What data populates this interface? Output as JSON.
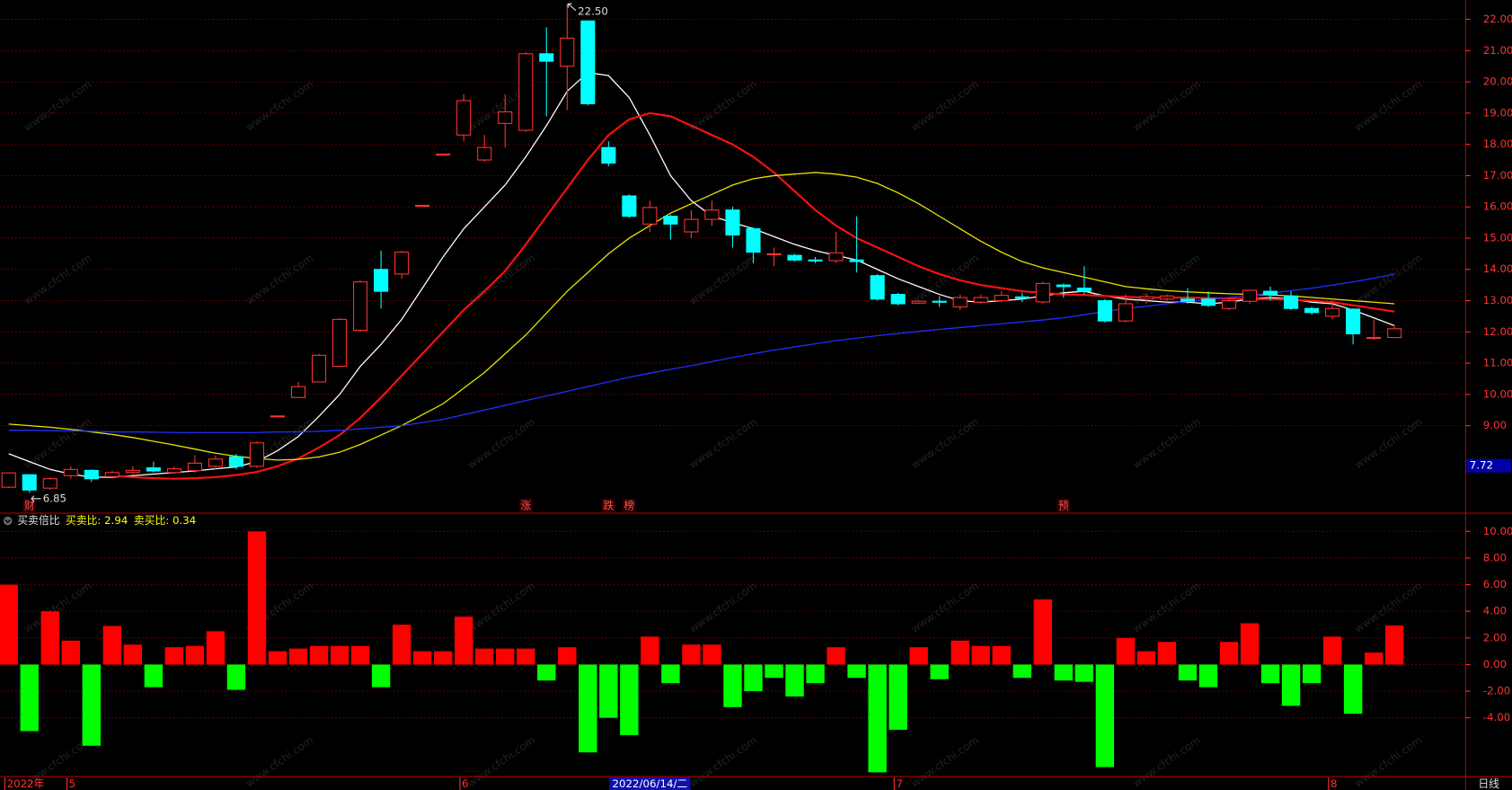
{
  "watermark": "www.cfchi.com",
  "chart_data": [
    {
      "type": "candlestick",
      "up_color": "#ff3232",
      "down_color": "#00ffff",
      "ylim": [
        6.2,
        22.62
      ],
      "yticks": [
        {
          "value": 9,
          "label": "9.00"
        },
        {
          "value": 10,
          "label": "10.00"
        },
        {
          "value": 11,
          "label": "11.00"
        },
        {
          "value": 12,
          "label": "12.00"
        },
        {
          "value": 13,
          "label": "13.00"
        },
        {
          "value": 14,
          "label": "14.00"
        },
        {
          "value": 15,
          "label": "15.00"
        },
        {
          "value": 16,
          "label": "16.00"
        },
        {
          "value": 17,
          "label": "17.00"
        },
        {
          "value": 18,
          "label": "18.00"
        },
        {
          "value": 19,
          "label": "19.00"
        },
        {
          "value": 20,
          "label": "20.00"
        },
        {
          "value": 21,
          "label": "21.00"
        },
        {
          "value": 22,
          "label": "22.00"
        }
      ],
      "grid": true,
      "open": [
        7.03,
        7.43,
        7.0,
        7.4,
        7.57,
        7.37,
        7.5,
        7.65,
        7.5,
        7.56,
        7.7,
        8.0,
        7.7,
        9.3,
        9.9,
        10.4,
        10.9,
        12.05,
        14.0,
        13.85,
        16.04,
        17.68,
        18.3,
        17.5,
        18.67,
        18.45,
        20.9,
        20.5,
        21.95,
        17.9,
        16.35,
        15.45,
        15.7,
        15.2,
        15.6,
        15.9,
        15.3,
        14.5,
        14.45,
        14.3,
        14.28,
        14.3,
        13.8,
        13.2,
        12.92,
        12.98,
        12.8,
        12.95,
        13.0,
        13.12,
        12.96,
        13.5,
        13.4,
        13.0,
        12.35,
        13.05,
        13.05,
        13.05,
        13.05,
        12.75,
        12.98,
        13.3,
        13.15,
        12.75,
        12.5,
        12.73,
        11.8,
        11.82
      ],
      "high": [
        7.5,
        7.45,
        7.35,
        7.7,
        7.6,
        7.55,
        7.7,
        7.85,
        7.7,
        8.05,
        8.05,
        8.1,
        8.5,
        9.32,
        10.4,
        11.3,
        12.45,
        13.65,
        14.6,
        14.6,
        16.06,
        17.7,
        19.6,
        18.3,
        19.6,
        20.95,
        21.75,
        22.5,
        21.95,
        18.1,
        16.4,
        16.2,
        15.75,
        15.9,
        16.2,
        16.0,
        15.35,
        14.7,
        14.5,
        14.4,
        15.2,
        15.7,
        13.85,
        13.25,
        13.0,
        13.15,
        13.2,
        13.2,
        13.3,
        13.25,
        13.6,
        13.55,
        14.1,
        13.05,
        13.2,
        13.2,
        13.2,
        13.4,
        13.3,
        13.1,
        13.35,
        13.45,
        13.3,
        12.8,
        13.0,
        12.75,
        12.4,
        12.2
      ],
      "low": [
        7.0,
        6.85,
        6.95,
        7.3,
        7.2,
        7.3,
        7.45,
        7.5,
        7.45,
        7.5,
        7.6,
        7.6,
        7.65,
        9.29,
        9.9,
        10.4,
        10.9,
        12.0,
        12.75,
        13.7,
        16.02,
        17.66,
        18.1,
        17.45,
        17.9,
        18.4,
        18.9,
        19.1,
        19.25,
        17.3,
        15.65,
        15.2,
        14.95,
        15.0,
        15.4,
        14.7,
        14.2,
        14.1,
        14.25,
        14.2,
        14.2,
        13.9,
        13.0,
        12.85,
        12.9,
        12.8,
        12.7,
        12.9,
        12.95,
        12.95,
        12.9,
        13.1,
        13.2,
        12.3,
        12.3,
        12.9,
        12.95,
        12.9,
        12.8,
        12.7,
        12.9,
        13.0,
        12.7,
        12.55,
        12.4,
        11.6,
        11.75,
        11.8
      ],
      "close": [
        7.49,
        6.94,
        7.3,
        7.6,
        7.3,
        7.5,
        7.57,
        7.55,
        7.62,
        7.8,
        7.93,
        7.7,
        8.45,
        9.31,
        10.25,
        11.25,
        12.4,
        13.6,
        13.3,
        14.55,
        16.05,
        17.69,
        19.4,
        17.9,
        19.04,
        20.9,
        20.66,
        21.4,
        19.3,
        17.4,
        15.7,
        15.98,
        15.45,
        15.6,
        15.9,
        15.1,
        14.55,
        14.5,
        14.3,
        14.27,
        14.53,
        14.25,
        13.05,
        12.9,
        12.98,
        12.95,
        13.1,
        13.1,
        13.17,
        13.08,
        13.55,
        13.45,
        13.3,
        12.35,
        12.9,
        13.12,
        13.15,
        12.98,
        12.85,
        13.0,
        13.33,
        13.2,
        12.75,
        12.62,
        12.75,
        11.94,
        11.82,
        12.1
      ],
      "series": [
        {
          "color": "#ffffff",
          "values": [
            8.1,
            7.85,
            7.6,
            7.45,
            7.35,
            7.35,
            7.4,
            7.45,
            7.5,
            7.55,
            7.62,
            7.68,
            7.85,
            8.2,
            8.65,
            9.3,
            10.0,
            10.9,
            11.6,
            12.4,
            13.4,
            14.4,
            15.3,
            16.0,
            16.7,
            17.6,
            18.6,
            19.7,
            20.3,
            20.2,
            19.5,
            18.3,
            17.0,
            16.2,
            15.7,
            15.5,
            15.3,
            15.05,
            14.8,
            14.6,
            14.45,
            14.3,
            14.0,
            13.7,
            13.45,
            13.2,
            13.0,
            12.95,
            13.0,
            13.05,
            13.15,
            13.25,
            13.3,
            13.15,
            13.05,
            13.0,
            12.95,
            12.95,
            12.9,
            12.95,
            13.05,
            13.1,
            13.05,
            12.95,
            12.9,
            12.7,
            12.45,
            12.2
          ]
        },
        {
          "color": "#ff1010",
          "values": [
            null,
            null,
            null,
            null,
            null,
            7.4,
            7.35,
            7.32,
            7.3,
            7.32,
            7.35,
            7.42,
            7.52,
            7.7,
            7.95,
            8.3,
            8.7,
            9.25,
            9.9,
            10.6,
            11.3,
            12.0,
            12.7,
            13.3,
            13.95,
            14.8,
            15.7,
            16.6,
            17.5,
            18.3,
            18.8,
            19.0,
            18.9,
            18.6,
            18.3,
            18.0,
            17.6,
            17.1,
            16.5,
            15.9,
            15.4,
            15.0,
            14.7,
            14.4,
            14.1,
            13.85,
            13.65,
            13.5,
            13.4,
            13.3,
            13.25,
            13.2,
            13.18,
            13.15,
            13.12,
            13.1,
            13.1,
            13.1,
            13.08,
            13.07,
            13.05,
            13.05,
            13.03,
            13.0,
            12.95,
            12.85,
            12.75,
            12.65
          ]
        },
        {
          "color": "#e6e600",
          "values": [
            9.05,
            9.0,
            8.95,
            8.88,
            8.8,
            8.72,
            8.62,
            8.5,
            8.38,
            8.25,
            8.12,
            8.02,
            7.95,
            7.9,
            7.92,
            8.0,
            8.15,
            8.4,
            8.7,
            9.0,
            9.35,
            9.7,
            10.2,
            10.7,
            11.3,
            11.9,
            12.6,
            13.3,
            13.9,
            14.5,
            15.0,
            15.4,
            15.8,
            16.1,
            16.4,
            16.7,
            16.9,
            17.0,
            17.05,
            17.1,
            17.05,
            16.95,
            16.75,
            16.45,
            16.1,
            15.7,
            15.3,
            14.9,
            14.55,
            14.25,
            14.05,
            13.9,
            13.75,
            13.6,
            13.45,
            13.38,
            13.32,
            13.28,
            13.25,
            13.22,
            13.2,
            13.18,
            13.15,
            13.1,
            13.05,
            13.0,
            12.95,
            12.9
          ]
        },
        {
          "color": "#2030ff",
          "values": [
            8.85,
            8.85,
            8.84,
            8.83,
            8.82,
            8.8,
            8.8,
            8.79,
            8.78,
            8.78,
            8.78,
            8.78,
            8.78,
            8.8,
            8.8,
            8.82,
            8.85,
            8.9,
            8.95,
            9.0,
            9.1,
            9.2,
            9.35,
            9.5,
            9.65,
            9.8,
            9.95,
            10.1,
            10.25,
            10.4,
            10.55,
            10.68,
            10.8,
            10.92,
            11.05,
            11.18,
            11.3,
            11.42,
            11.52,
            11.62,
            11.72,
            11.8,
            11.88,
            11.95,
            12.02,
            12.08,
            12.14,
            12.2,
            12.26,
            12.32,
            12.38,
            12.45,
            12.55,
            12.65,
            12.75,
            12.82,
            12.9,
            12.97,
            13.04,
            13.1,
            13.17,
            13.24,
            13.32,
            13.4,
            13.5,
            13.6,
            13.72,
            13.85
          ]
        }
      ],
      "high_label": {
        "value": 22.5,
        "label": "22.50"
      },
      "low_label": {
        "value": 6.85,
        "label": "6.85"
      },
      "price_marker": {
        "value": 7.72,
        "label": "7.72"
      },
      "event_color": "#ff5050",
      "event_labels": [
        null,
        "财",
        null,
        null,
        null,
        null,
        null,
        null,
        null,
        null,
        null,
        null,
        null,
        null,
        null,
        null,
        null,
        null,
        null,
        null,
        null,
        null,
        null,
        null,
        null,
        "涨",
        null,
        null,
        null,
        "跌",
        "榜",
        null,
        null,
        null,
        null,
        null,
        null,
        null,
        null,
        null,
        null,
        null,
        null,
        null,
        null,
        null,
        null,
        null,
        null,
        null,
        null,
        "预",
        null,
        null,
        null,
        null,
        null,
        null,
        null,
        null,
        null,
        null,
        null,
        null,
        null,
        null,
        null,
        null
      ]
    },
    {
      "type": "bar",
      "title": "买卖倍比",
      "stats": [
        "买卖比: 2.94",
        "卖买比: 0.34"
      ],
      "up_color": "#ff0000",
      "down_color": "#00ff00",
      "ylim": [
        -8.41,
        11.3
      ],
      "yticks": [
        {
          "value": -4,
          "label": "-4.00"
        },
        {
          "value": -2,
          "label": "-2.00"
        },
        {
          "value": 0,
          "label": "0.00"
        },
        {
          "value": 2,
          "label": "2.00"
        },
        {
          "value": 4,
          "label": "4.00"
        },
        {
          "value": 6,
          "label": "6.00"
        },
        {
          "value": 8,
          "label": "8.00"
        },
        {
          "value": 10,
          "label": "10.00"
        }
      ],
      "grid": true,
      "values": [
        6.0,
        -5.0,
        4.0,
        1.8,
        -6.1,
        2.9,
        1.5,
        -1.7,
        1.3,
        1.4,
        2.5,
        -1.9,
        10.0,
        1.0,
        1.2,
        1.4,
        1.4,
        1.4,
        -1.7,
        3.0,
        1.0,
        1.0,
        3.6,
        1.2,
        1.2,
        1.2,
        -1.2,
        1.3,
        -6.6,
        -4.0,
        -5.3,
        2.1,
        -1.4,
        1.5,
        1.5,
        -3.2,
        -2.0,
        -1.0,
        -2.4,
        -1.4,
        1.3,
        -1.0,
        -8.1,
        -4.9,
        1.3,
        -1.1,
        1.8,
        1.4,
        1.4,
        -1.0,
        4.9,
        -1.2,
        -1.3,
        -7.7,
        2.0,
        1.0,
        1.7,
        -1.2,
        -1.7,
        1.7,
        3.1,
        -1.4,
        -3.1,
        -1.4,
        2.1,
        -3.7,
        0.9,
        2.94
      ],
      "categories": [
        "2022年",
        null,
        null,
        "5",
        null,
        null,
        null,
        null,
        null,
        null,
        null,
        null,
        null,
        null,
        null,
        null,
        null,
        null,
        null,
        null,
        null,
        null,
        "6",
        null,
        null,
        null,
        null,
        null,
        null,
        null,
        null,
        null,
        null,
        null,
        null,
        null,
        null,
        null,
        null,
        null,
        null,
        null,
        null,
        "7",
        null,
        null,
        null,
        null,
        null,
        null,
        null,
        null,
        null,
        null,
        null,
        null,
        null,
        null,
        null,
        null,
        null,
        null,
        null,
        null,
        "8",
        null,
        null,
        null
      ],
      "highlight_labels": [
        null,
        null,
        null,
        null,
        null,
        null,
        null,
        null,
        null,
        null,
        null,
        null,
        null,
        null,
        null,
        null,
        null,
        null,
        null,
        null,
        null,
        null,
        null,
        null,
        null,
        null,
        null,
        null,
        null,
        null,
        null,
        "2022/06/14/二",
        null,
        null,
        null,
        null,
        null,
        null,
        null,
        null,
        null,
        null,
        null,
        null,
        null,
        null,
        null,
        null,
        null,
        null,
        null,
        null,
        null,
        null,
        null,
        null,
        null,
        null,
        null,
        null,
        null,
        null,
        null,
        null,
        null,
        null,
        null,
        null
      ],
      "period_label": "日线"
    }
  ]
}
